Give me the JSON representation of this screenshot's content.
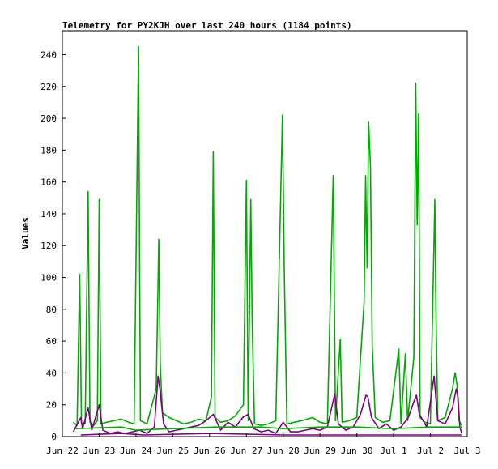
{
  "chart_data": {
    "type": "line",
    "title": "Telemetry for PY2KJH over last 240 hours (1184 points)",
    "xlabel": "",
    "ylabel": "Values",
    "x_tick_labels": [
      "Jun 22",
      "Jun 23",
      "Jun 24",
      "Jun 25",
      "Jun 26",
      "Jun 27",
      "Jun 28",
      "Jun 29",
      "Jun 30",
      "Jul 1",
      "Jul 2",
      "Jul 3"
    ],
    "xlim": [
      0,
      11
    ],
    "ylim": [
      0,
      255
    ],
    "y_ticks": [
      0,
      20,
      40,
      60,
      80,
      100,
      120,
      140,
      160,
      180,
      200,
      220,
      240
    ],
    "grid": false,
    "legend": "none",
    "series": [
      {
        "color": "#00aa00",
        "points": [
          [
            0.3,
            9
          ],
          [
            0.4,
            7
          ],
          [
            0.47,
            102
          ],
          [
            0.52,
            8
          ],
          [
            0.62,
            8
          ],
          [
            0.7,
            154
          ],
          [
            0.75,
            9
          ],
          [
            0.85,
            7
          ],
          [
            0.95,
            10
          ],
          [
            1.0,
            149
          ],
          [
            1.05,
            8
          ],
          [
            1.2,
            9
          ],
          [
            1.4,
            10
          ],
          [
            1.6,
            11
          ],
          [
            1.8,
            9
          ],
          [
            1.95,
            8
          ],
          [
            2.07,
            245
          ],
          [
            2.12,
            10
          ],
          [
            2.3,
            8
          ],
          [
            2.55,
            30
          ],
          [
            2.62,
            124
          ],
          [
            2.66,
            45
          ],
          [
            2.72,
            15
          ],
          [
            2.9,
            12
          ],
          [
            3.1,
            10
          ],
          [
            3.3,
            8
          ],
          [
            3.5,
            9
          ],
          [
            3.7,
            11
          ],
          [
            3.9,
            10
          ],
          [
            4.05,
            25
          ],
          [
            4.1,
            179
          ],
          [
            4.15,
            12
          ],
          [
            4.3,
            9
          ],
          [
            4.5,
            10
          ],
          [
            4.7,
            13
          ],
          [
            4.92,
            20
          ],
          [
            5.0,
            161
          ],
          [
            5.05,
            10
          ],
          [
            5.12,
            149
          ],
          [
            5.16,
            70
          ],
          [
            5.22,
            8
          ],
          [
            5.4,
            7
          ],
          [
            5.6,
            8
          ],
          [
            5.8,
            10
          ],
          [
            5.98,
            202
          ],
          [
            6.03,
            103
          ],
          [
            6.1,
            8
          ],
          [
            6.3,
            9
          ],
          [
            6.5,
            10
          ],
          [
            6.8,
            12
          ],
          [
            7.0,
            9
          ],
          [
            7.2,
            8
          ],
          [
            7.36,
            164
          ],
          [
            7.42,
            10
          ],
          [
            7.55,
            61
          ],
          [
            7.6,
            9
          ],
          [
            7.8,
            10
          ],
          [
            8.0,
            12
          ],
          [
            8.2,
            85
          ],
          [
            8.24,
            164
          ],
          [
            8.28,
            106
          ],
          [
            8.32,
            198
          ],
          [
            8.37,
            170
          ],
          [
            8.42,
            57
          ],
          [
            8.5,
            12
          ],
          [
            8.7,
            9
          ],
          [
            8.9,
            10
          ],
          [
            9.14,
            55
          ],
          [
            9.2,
            8
          ],
          [
            9.32,
            52
          ],
          [
            9.38,
            10
          ],
          [
            9.55,
            50
          ],
          [
            9.6,
            222
          ],
          [
            9.64,
            133
          ],
          [
            9.68,
            203
          ],
          [
            9.72,
            12
          ],
          [
            9.85,
            9
          ],
          [
            10.0,
            8
          ],
          [
            10.12,
            149
          ],
          [
            10.15,
            78
          ],
          [
            10.2,
            10
          ],
          [
            10.4,
            12
          ],
          [
            10.6,
            30
          ],
          [
            10.67,
            40
          ],
          [
            10.72,
            33
          ],
          [
            10.78,
            10
          ],
          [
            10.85,
            7
          ]
        ]
      },
      {
        "color": "#800080",
        "points": [
          [
            0.3,
            3
          ],
          [
            0.5,
            12
          ],
          [
            0.55,
            5
          ],
          [
            0.7,
            18
          ],
          [
            0.8,
            4
          ],
          [
            1.0,
            20
          ],
          [
            1.1,
            4
          ],
          [
            1.3,
            2
          ],
          [
            1.5,
            3
          ],
          [
            1.7,
            2
          ],
          [
            1.9,
            3
          ],
          [
            2.1,
            4
          ],
          [
            2.3,
            2
          ],
          [
            2.5,
            6
          ],
          [
            2.6,
            38
          ],
          [
            2.65,
            30
          ],
          [
            2.75,
            8
          ],
          [
            2.9,
            3
          ],
          [
            3.1,
            4
          ],
          [
            3.3,
            5
          ],
          [
            3.5,
            6
          ],
          [
            3.7,
            7
          ],
          [
            3.9,
            10
          ],
          [
            4.1,
            14
          ],
          [
            4.3,
            4
          ],
          [
            4.5,
            9
          ],
          [
            4.7,
            6
          ],
          [
            4.9,
            12
          ],
          [
            5.05,
            14
          ],
          [
            5.2,
            5
          ],
          [
            5.4,
            3
          ],
          [
            5.6,
            4
          ],
          [
            5.8,
            2
          ],
          [
            6.0,
            9
          ],
          [
            6.2,
            3
          ],
          [
            6.4,
            3
          ],
          [
            6.6,
            4
          ],
          [
            6.8,
            5
          ],
          [
            7.0,
            4
          ],
          [
            7.2,
            6
          ],
          [
            7.4,
            27
          ],
          [
            7.5,
            8
          ],
          [
            7.7,
            4
          ],
          [
            7.9,
            6
          ],
          [
            8.1,
            14
          ],
          [
            8.25,
            26
          ],
          [
            8.3,
            25
          ],
          [
            8.4,
            12
          ],
          [
            8.6,
            5
          ],
          [
            8.8,
            8
          ],
          [
            9.0,
            4
          ],
          [
            9.2,
            6
          ],
          [
            9.4,
            12
          ],
          [
            9.55,
            22
          ],
          [
            9.62,
            26
          ],
          [
            9.7,
            14
          ],
          [
            9.9,
            6
          ],
          [
            10.1,
            38
          ],
          [
            10.2,
            10
          ],
          [
            10.4,
            8
          ],
          [
            10.6,
            18
          ],
          [
            10.7,
            30
          ],
          [
            10.75,
            25
          ],
          [
            10.8,
            6
          ],
          [
            10.85,
            2
          ]
        ]
      },
      {
        "color": "#00aa00",
        "points": [
          [
            0.35,
            5
          ],
          [
            1.6,
            6
          ],
          [
            2.0,
            4
          ],
          [
            3.0,
            5
          ],
          [
            4.2,
            6
          ],
          [
            5.4,
            6
          ],
          [
            6.0,
            5
          ],
          [
            7.0,
            6
          ],
          [
            8.0,
            6
          ],
          [
            9.0,
            5
          ],
          [
            10.0,
            6
          ],
          [
            10.85,
            6
          ]
        ]
      },
      {
        "color": "#800080",
        "points": [
          [
            0.5,
            1
          ],
          [
            1.6,
            2
          ],
          [
            2.2,
            1
          ],
          [
            4.0,
            2
          ],
          [
            6.0,
            1
          ],
          [
            8.0,
            1
          ],
          [
            9.5,
            1
          ],
          [
            10.85,
            1
          ]
        ]
      }
    ]
  }
}
